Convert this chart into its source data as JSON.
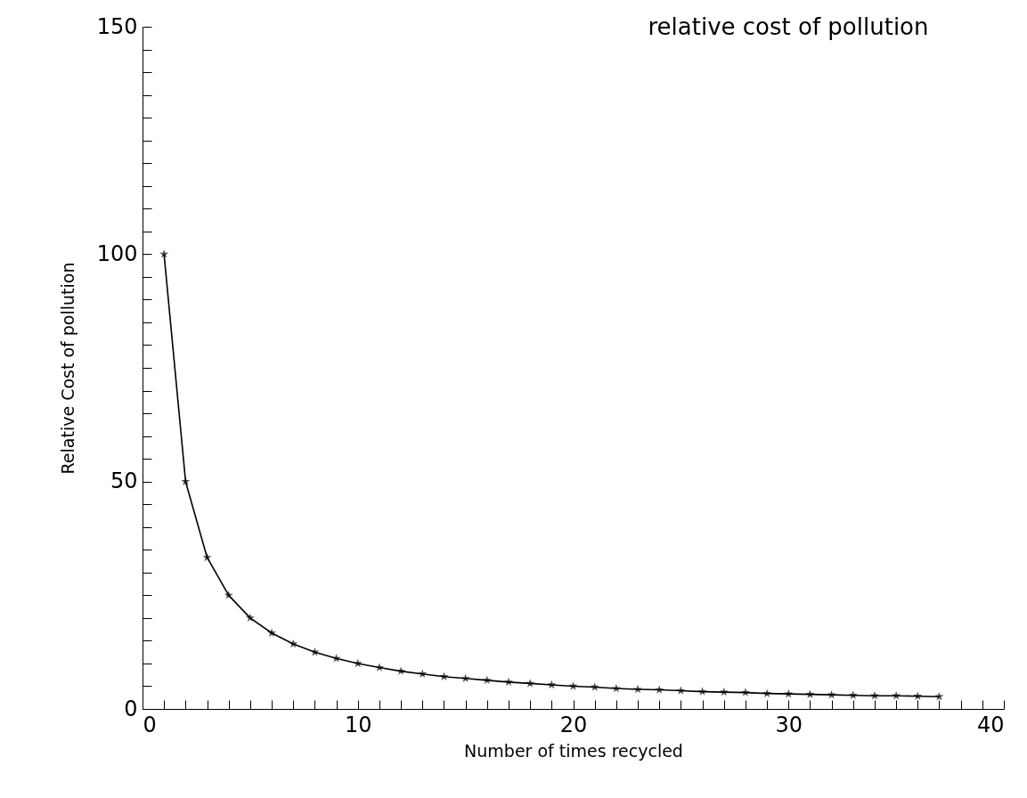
{
  "chart_data": {
    "type": "line",
    "title": "relative cost of pollution",
    "xlabel": "Number of times recycled",
    "ylabel": "Relative Cost of pollution",
    "x": [
      1,
      2,
      3,
      4,
      5,
      6,
      7,
      8,
      9,
      10,
      11,
      12,
      13,
      14,
      15,
      16,
      17,
      18,
      19,
      20,
      21,
      22,
      23,
      24,
      25,
      26,
      27,
      28,
      29,
      30,
      31,
      32,
      33,
      34,
      35,
      36,
      37
    ],
    "series": [
      {
        "color": "#000000",
        "values": [
          100,
          50,
          33.3,
          25,
          20,
          16.7,
          14.3,
          12.5,
          11.1,
          10,
          9.1,
          8.3,
          7.7,
          7.1,
          6.7,
          6.3,
          5.9,
          5.6,
          5.3,
          5,
          4.8,
          4.5,
          4.3,
          4.2,
          4,
          3.8,
          3.7,
          3.6,
          3.4,
          3.3,
          3.2,
          3.1,
          3,
          2.9,
          2.9,
          2.8,
          2.7
        ]
      }
    ],
    "marker": "star",
    "line_style": "solid",
    "xlim": [
      0,
      40
    ],
    "xticks": [
      0,
      {
        "value": 1,
        "label": null
      },
      {
        "value": 2,
        "label": null
      },
      {
        "value": 3,
        "label": null
      },
      {
        "value": 4,
        "label": null
      },
      {
        "value": 5,
        "label": null
      },
      {
        "value": 6,
        "label": null
      },
      {
        "value": 7,
        "label": null
      },
      {
        "value": 8,
        "label": null
      },
      {
        "value": 9,
        "label": null
      },
      10,
      {
        "value": 11,
        "label": null
      },
      {
        "value": 12,
        "label": null
      },
      {
        "value": 13,
        "label": null
      },
      {
        "value": 14,
        "label": null
      },
      {
        "value": 15,
        "label": null
      },
      {
        "value": 16,
        "label": null
      },
      {
        "value": 17,
        "label": null
      },
      {
        "value": 18,
        "label": null
      },
      {
        "value": 19,
        "label": null
      },
      20,
      {
        "value": 21,
        "label": null
      },
      {
        "value": 22,
        "label": null
      },
      {
        "value": 23,
        "label": null
      },
      {
        "value": 24,
        "label": null
      },
      {
        "value": 25,
        "label": null
      },
      {
        "value": 26,
        "label": null
      },
      {
        "value": 27,
        "label": null
      },
      {
        "value": 28,
        "label": null
      },
      {
        "value": 29,
        "label": null
      },
      30,
      {
        "value": 31,
        "label": null
      },
      {
        "value": 32,
        "label": null
      },
      {
        "value": 33,
        "label": null
      },
      {
        "value": 34,
        "label": null
      },
      {
        "value": 35,
        "label": null
      },
      {
        "value": 36,
        "label": null
      },
      {
        "value": 37,
        "label": null
      },
      {
        "value": 38,
        "label": null
      },
      {
        "value": 39,
        "label": null
      },
      40
    ],
    "ylim": [
      0,
      150
    ],
    "yticks": [
      0,
      {
        "value": 5,
        "label": null
      },
      {
        "value": 10,
        "label": null
      },
      {
        "value": 15,
        "label": null
      },
      {
        "value": 20,
        "label": null
      },
      {
        "value": 25,
        "label": null
      },
      {
        "value": 30,
        "label": null
      },
      {
        "value": 35,
        "label": null
      },
      {
        "value": 40,
        "label": null
      },
      {
        "value": 45,
        "label": null
      },
      50,
      {
        "value": 55,
        "label": null
      },
      {
        "value": 60,
        "label": null
      },
      {
        "value": 65,
        "label": null
      },
      {
        "value": 70,
        "label": null
      },
      {
        "value": 75,
        "label": null
      },
      {
        "value": 80,
        "label": null
      },
      {
        "value": 85,
        "label": null
      },
      {
        "value": 90,
        "label": null
      },
      {
        "value": 95,
        "label": null
      },
      100,
      {
        "value": 105,
        "label": null
      },
      {
        "value": 110,
        "label": null
      },
      {
        "value": 115,
        "label": null
      },
      {
        "value": 120,
        "label": null
      },
      {
        "value": 125,
        "label": null
      },
      {
        "value": 130,
        "label": null
      },
      {
        "value": 135,
        "label": null
      },
      {
        "value": 140,
        "label": null
      },
      {
        "value": 145,
        "label": null
      },
      150
    ]
  }
}
